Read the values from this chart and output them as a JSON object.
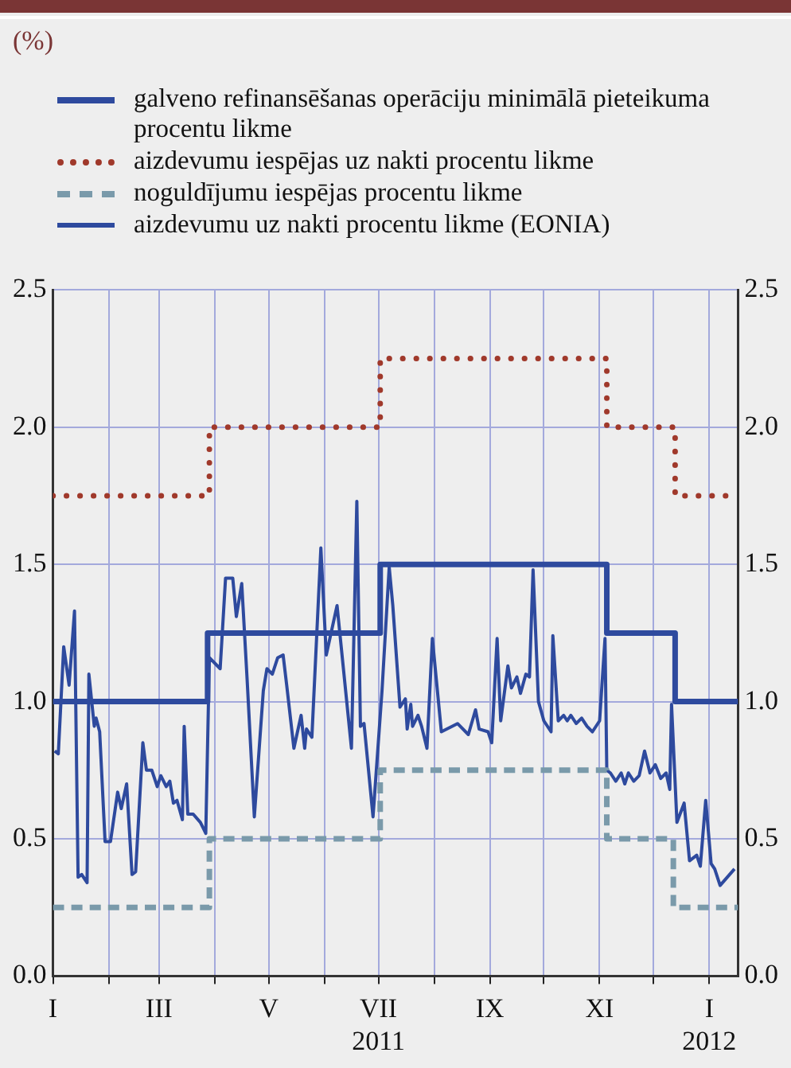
{
  "chart_data": {
    "type": "line",
    "annotations": [
      "(%)"
    ],
    "xlim": [
      "2011-01-01",
      "2012-01-17"
    ],
    "xticks": [
      {
        "value": "2011-01-01",
        "label": "I"
      },
      {
        "value": "2011-02-01",
        "label": null
      },
      {
        "value": "2011-03-01",
        "label": "III"
      },
      {
        "value": "2011-04-01",
        "label": null
      },
      {
        "value": "2011-05-01",
        "label": "V"
      },
      {
        "value": "2011-06-01",
        "label": null
      },
      {
        "value": "2011-07-01",
        "label": "VII\n2011"
      },
      {
        "value": "2011-08-01",
        "label": null
      },
      {
        "value": "2011-09-01",
        "label": "IX"
      },
      {
        "value": "2011-10-01",
        "label": null
      },
      {
        "value": "2011-11-01",
        "label": "XI"
      },
      {
        "value": "2011-12-01",
        "label": null
      },
      {
        "value": "2012-01-01",
        "label": "I\n2012"
      }
    ],
    "ylim": [
      0,
      2.5
    ],
    "yticks": [
      {
        "value": 0,
        "label": "0.0"
      },
      0.5,
      {
        "value": 1,
        "label": "1.0"
      },
      1.5,
      {
        "value": 2,
        "label": "2.0"
      },
      2.5
    ],
    "y2lim": [
      0,
      2.5
    ],
    "y2ticks": [
      {
        "value": 0,
        "label": "0.0"
      },
      0.5,
      {
        "value": 1,
        "label": "1.0"
      },
      1.5,
      {
        "value": 2,
        "label": "2.0"
      },
      2.5
    ],
    "grid": true,
    "legend": "top",
    "marker": "none",
    "series": [
      {
        "name": "galveno refinansēšanas operāciju minimālā pieteikuma procentu likme",
        "type": "step",
        "color": "#2e4a9e",
        "line_style": "solid",
        "x": [
          "2011-01-01",
          "2011-03-28",
          "2011-07-02",
          "2011-11-05",
          "2011-12-13",
          "2012-01-17"
        ],
        "values": [
          1.0,
          1.25,
          1.5,
          1.25,
          1.0,
          1.0
        ]
      },
      {
        "name": "aizdevumu iespējas uz nakti procentu likme",
        "type": "step",
        "color": "#a0392b",
        "line_style": "dotted",
        "x": [
          "2011-01-01",
          "2011-03-29",
          "2011-07-02",
          "2011-11-05",
          "2011-12-13",
          "2012-01-17"
        ],
        "values": [
          1.75,
          2.0,
          2.25,
          2.0,
          1.75,
          1.75
        ]
      },
      {
        "name": "noguldījumu iespējas procentu likme",
        "type": "step",
        "color": "#7a9aaa",
        "line_style": "dashed",
        "x": [
          "2011-01-01",
          "2011-03-29",
          "2011-07-02",
          "2011-11-05",
          "2011-12-12",
          "2012-01-17"
        ],
        "values": [
          0.25,
          0.5,
          0.75,
          0.5,
          0.25,
          0.25
        ]
      },
      {
        "name": "aizdevumu uz nakti procentu likme (EONIA)",
        "color": "#2e4a9e",
        "line_style": "solid",
        "x": [
          "2011-01-02",
          "2011-01-04",
          "2011-01-07",
          "2011-01-10",
          "2011-01-13",
          "2011-01-15",
          "2011-01-17",
          "2011-01-20",
          "2011-01-21",
          "2011-01-24",
          "2011-01-25",
          "2011-01-27",
          "2011-01-30",
          "2011-02-02",
          "2011-02-06",
          "2011-02-08",
          "2011-02-11",
          "2011-02-14",
          "2011-02-16",
          "2011-02-20",
          "2011-02-22",
          "2011-02-25",
          "2011-02-28",
          "2011-03-02",
          "2011-03-05",
          "2011-03-07",
          "2011-03-09",
          "2011-03-11",
          "2011-03-14",
          "2011-03-15",
          "2011-03-17",
          "2011-03-20",
          "2011-03-24",
          "2011-03-27",
          "2011-03-29",
          "2011-04-04",
          "2011-04-07",
          "2011-04-11",
          "2011-04-13",
          "2011-04-16",
          "2011-04-19",
          "2011-04-23",
          "2011-04-28",
          "2011-04-30",
          "2011-05-03",
          "2011-05-06",
          "2011-05-09",
          "2011-05-11",
          "2011-05-15",
          "2011-05-19",
          "2011-05-21",
          "2011-05-22",
          "2011-05-25",
          "2011-05-30",
          "2011-06-02",
          "2011-06-08",
          "2011-06-16",
          "2011-06-19",
          "2011-06-21",
          "2011-06-23",
          "2011-06-28",
          "2011-07-03",
          "2011-07-07",
          "2011-07-09",
          "2011-07-13",
          "2011-07-16",
          "2011-07-17",
          "2011-07-19",
          "2011-07-20",
          "2011-07-23",
          "2011-07-25",
          "2011-07-28",
          "2011-07-31",
          "2011-08-05",
          "2011-08-14",
          "2011-08-20",
          "2011-08-24",
          "2011-08-26",
          "2011-08-31",
          "2011-09-02",
          "2011-09-05",
          "2011-09-07",
          "2011-09-11",
          "2011-09-13",
          "2011-09-16",
          "2011-09-18",
          "2011-09-21",
          "2011-09-23",
          "2011-09-25",
          "2011-09-28",
          "2011-10-01",
          "2011-10-05",
          "2011-10-06",
          "2011-10-09",
          "2011-10-12",
          "2011-10-14",
          "2011-10-16",
          "2011-10-19",
          "2011-10-22",
          "2011-10-25",
          "2011-10-28",
          "2011-11-01",
          "2011-11-04",
          "2011-11-05",
          "2011-11-07",
          "2011-11-10",
          "2011-11-13",
          "2011-11-15",
          "2011-11-17",
          "2011-11-20",
          "2011-11-23",
          "2011-11-26",
          "2011-11-29",
          "2011-12-02",
          "2011-12-05",
          "2011-12-08",
          "2011-12-10",
          "2011-12-11",
          "2011-12-14",
          "2011-12-18",
          "2011-12-21",
          "2011-12-25",
          "2011-12-27",
          "2011-12-30",
          "2012-01-02",
          "2012-01-04",
          "2012-01-07",
          "2012-01-15"
        ],
        "values": [
          0.82,
          0.81,
          1.2,
          1.06,
          1.33,
          0.36,
          0.37,
          0.34,
          1.1,
          0.91,
          0.94,
          0.89,
          0.49,
          0.49,
          0.67,
          0.61,
          0.7,
          0.37,
          0.38,
          0.85,
          0.75,
          0.75,
          0.69,
          0.73,
          0.69,
          0.71,
          0.63,
          0.64,
          0.57,
          0.91,
          0.59,
          0.59,
          0.56,
          0.52,
          1.16,
          1.12,
          1.45,
          1.45,
          1.31,
          1.43,
          1.08,
          0.58,
          1.04,
          1.12,
          1.1,
          1.16,
          1.17,
          1.06,
          0.83,
          0.95,
          0.83,
          0.9,
          0.87,
          1.56,
          1.17,
          1.35,
          0.83,
          1.73,
          0.91,
          0.92,
          0.58,
          1.04,
          1.49,
          1.35,
          0.98,
          1.01,
          0.9,
          0.99,
          0.91,
          0.95,
          0.91,
          0.83,
          1.23,
          0.89,
          0.92,
          0.88,
          0.97,
          0.9,
          0.89,
          0.85,
          1.23,
          0.93,
          1.13,
          1.05,
          1.09,
          1.03,
          1.1,
          1.09,
          1.48,
          1.0,
          0.93,
          0.89,
          1.24,
          0.93,
          0.95,
          0.93,
          0.95,
          0.92,
          0.94,
          0.91,
          0.89,
          0.93,
          1.23,
          0.75,
          0.74,
          0.71,
          0.74,
          0.7,
          0.74,
          0.71,
          0.73,
          0.82,
          0.74,
          0.77,
          0.72,
          0.74,
          0.68,
          0.99,
          0.56,
          0.63,
          0.42,
          0.44,
          0.4,
          0.64,
          0.41,
          0.39,
          0.33,
          0.39
        ]
      }
    ]
  }
}
